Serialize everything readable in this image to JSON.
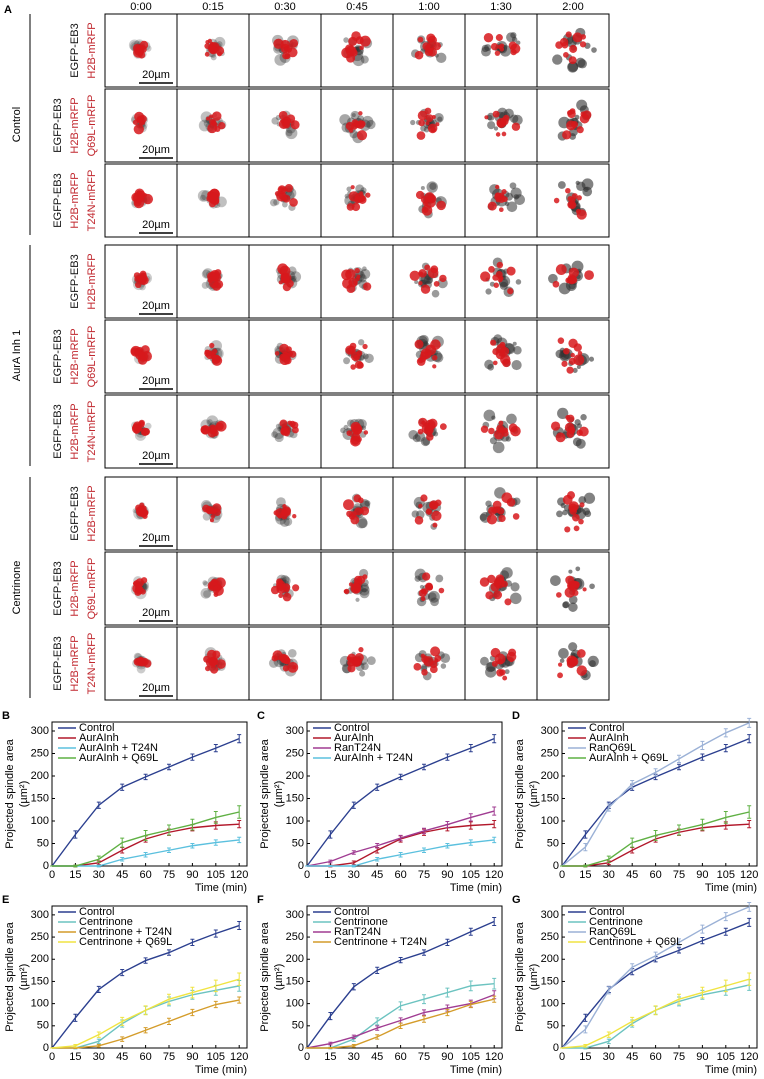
{
  "panel_a": {
    "label": "A",
    "times": [
      "0:00",
      "0:15",
      "0:30",
      "0:45",
      "1:00",
      "1:30",
      "2:00"
    ],
    "scale_bar": "20µm",
    "groups": [
      {
        "name": "Control",
        "rows": [
          [
            "EGFP-EB3",
            "H2B-mRFP"
          ],
          [
            "EGFP-EB3",
            "H2B-mRFP",
            "Q69L-mRFP"
          ],
          [
            "EGFP-EB3",
            "H2B-mRFP",
            "T24N-mRFP"
          ]
        ]
      },
      {
        "name": "AurA Inh 1",
        "rows": [
          [
            "EGFP-EB3",
            "H2B-mRFP"
          ],
          [
            "EGFP-EB3",
            "H2B-mRFP",
            "Q69L-mRFP"
          ],
          [
            "EGFP-EB3",
            "H2B-mRFP",
            "T24N-mRFP"
          ]
        ]
      },
      {
        "name": "Centrinone",
        "rows": [
          [
            "EGFP-EB3",
            "H2B-mRFP"
          ],
          [
            "EGFP-EB3",
            "H2B-mRFP",
            "Q69L-mRFP"
          ],
          [
            "EGFP-EB3",
            "H2B-mRFP",
            "T24N-mRFP"
          ]
        ]
      }
    ]
  },
  "chart_data": [
    {
      "type": "line",
      "panel": "B",
      "xlabel": "Time (min)",
      "ylabel": [
        "Projected spindle area",
        "(µm²)"
      ],
      "x": [
        0,
        15,
        30,
        45,
        60,
        75,
        90,
        105,
        120
      ],
      "xlim": [
        0,
        125
      ],
      "xticks": [
        0,
        15,
        30,
        45,
        60,
        75,
        90,
        105,
        120
      ],
      "ylim": [
        0,
        320
      ],
      "yticks": [
        0,
        50,
        100,
        150,
        200,
        250,
        300
      ],
      "legend": "upper left",
      "series": [
        {
          "name": "Control",
          "color": "#2b3f8f",
          "values": [
            0,
            70,
            135,
            175,
            198,
            220,
            242,
            262,
            283
          ],
          "errors": [
            0,
            8,
            7,
            7,
            6,
            6,
            7,
            8,
            9
          ]
        },
        {
          "name": "AurAInh",
          "color": "#b2182b",
          "values": [
            0,
            0,
            7,
            35,
            60,
            75,
            85,
            90,
            93
          ],
          "errors": [
            0,
            2,
            4,
            6,
            7,
            7,
            7,
            8,
            8
          ]
        },
        {
          "name": "AurAInh + T24N",
          "color": "#5bc0de",
          "values": [
            0,
            0,
            0,
            15,
            25,
            35,
            45,
            52,
            58
          ],
          "errors": [
            0,
            1,
            2,
            4,
            5,
            5,
            5,
            6,
            6
          ]
        },
        {
          "name": "AurAInh + Q69L",
          "color": "#5fb043",
          "values": [
            0,
            0,
            15,
            52,
            68,
            80,
            92,
            108,
            120
          ],
          "errors": [
            0,
            2,
            7,
            10,
            11,
            11,
            12,
            13,
            14
          ]
        }
      ]
    },
    {
      "type": "line",
      "panel": "C",
      "xlabel": "Time (min)",
      "ylabel": [
        "Projected spindle area",
        "(µm²)"
      ],
      "x": [
        0,
        15,
        30,
        45,
        60,
        75,
        90,
        105,
        120
      ],
      "xlim": [
        0,
        125
      ],
      "xticks": [
        0,
        15,
        30,
        45,
        60,
        75,
        90,
        105,
        120
      ],
      "ylim": [
        0,
        320
      ],
      "yticks": [
        0,
        50,
        100,
        150,
        200,
        250,
        300
      ],
      "legend": "upper left",
      "series": [
        {
          "name": "Control",
          "color": "#2b3f8f",
          "values": [
            0,
            70,
            135,
            175,
            198,
            220,
            242,
            262,
            283
          ],
          "errors": [
            0,
            8,
            7,
            7,
            6,
            6,
            7,
            8,
            9
          ]
        },
        {
          "name": "AurAInh",
          "color": "#b2182b",
          "values": [
            0,
            0,
            7,
            35,
            60,
            75,
            85,
            90,
            93
          ],
          "errors": [
            0,
            2,
            4,
            6,
            7,
            7,
            7,
            8,
            8
          ]
        },
        {
          "name": "RanT24N",
          "color": "#a03c92",
          "values": [
            0,
            10,
            30,
            45,
            62,
            78,
            92,
            108,
            122
          ],
          "errors": [
            0,
            3,
            4,
            5,
            6,
            6,
            7,
            8,
            9
          ]
        },
        {
          "name": "AurAInh + T24N",
          "color": "#5bc0de",
          "values": [
            0,
            0,
            0,
            15,
            25,
            35,
            45,
            52,
            58
          ],
          "errors": [
            0,
            1,
            2,
            4,
            5,
            5,
            5,
            6,
            6
          ]
        }
      ]
    },
    {
      "type": "line",
      "panel": "D",
      "xlabel": "Time (min)",
      "ylabel": [
        "Projected spindle area",
        "(µm²)"
      ],
      "x": [
        0,
        15,
        30,
        45,
        60,
        75,
        90,
        105,
        120
      ],
      "xlim": [
        0,
        125
      ],
      "xticks": [
        0,
        15,
        30,
        45,
        60,
        75,
        90,
        105,
        120
      ],
      "ylim": [
        0,
        320
      ],
      "yticks": [
        0,
        50,
        100,
        150,
        200,
        250,
        300
      ],
      "legend": "upper left",
      "series": [
        {
          "name": "Control",
          "color": "#2b3f8f",
          "values": [
            0,
            70,
            135,
            175,
            198,
            220,
            242,
            262,
            283
          ],
          "errors": [
            0,
            8,
            7,
            7,
            6,
            6,
            7,
            8,
            9
          ]
        },
        {
          "name": "AurAInh",
          "color": "#b2182b",
          "values": [
            0,
            0,
            7,
            35,
            60,
            75,
            85,
            90,
            93
          ],
          "errors": [
            0,
            2,
            4,
            6,
            7,
            7,
            7,
            8,
            8
          ]
        },
        {
          "name": "RanQ69L",
          "color": "#9bb1d6",
          "values": [
            0,
            42,
            130,
            182,
            208,
            238,
            268,
            296,
            318
          ],
          "errors": [
            0,
            8,
            8,
            8,
            8,
            8,
            9,
            9,
            10
          ]
        },
        {
          "name": "AurAInh + Q69L",
          "color": "#5fb043",
          "values": [
            0,
            0,
            15,
            52,
            68,
            80,
            92,
            108,
            120
          ],
          "errors": [
            0,
            2,
            7,
            10,
            11,
            11,
            12,
            13,
            14
          ]
        }
      ]
    },
    {
      "type": "line",
      "panel": "E",
      "xlabel": "Time (min)",
      "ylabel": [
        "Projected spindle area",
        "(µm²)"
      ],
      "x": [
        0,
        15,
        30,
        45,
        60,
        75,
        90,
        105,
        120
      ],
      "xlim": [
        0,
        125
      ],
      "xticks": [
        0,
        15,
        30,
        45,
        60,
        75,
        90,
        105,
        120
      ],
      "ylim": [
        0,
        320
      ],
      "yticks": [
        0,
        50,
        100,
        150,
        200,
        250,
        300
      ],
      "legend": "upper left",
      "series": [
        {
          "name": "Control",
          "color": "#2b3f8f",
          "values": [
            0,
            68,
            132,
            170,
            197,
            215,
            238,
            258,
            276
          ],
          "errors": [
            0,
            8,
            7,
            7,
            6,
            6,
            7,
            8,
            9
          ]
        },
        {
          "name": "Centrinone",
          "color": "#6cc3c0",
          "values": [
            0,
            0,
            15,
            55,
            85,
            105,
            120,
            130,
            140
          ],
          "errors": [
            0,
            2,
            5,
            8,
            9,
            10,
            10,
            11,
            12
          ]
        },
        {
          "name": "Centrinone + T24N",
          "color": "#d49c2a",
          "values": [
            0,
            0,
            5,
            20,
            40,
            60,
            80,
            98,
            108
          ],
          "errors": [
            0,
            1,
            3,
            5,
            6,
            7,
            7,
            7,
            7
          ]
        },
        {
          "name": "Centrinone + Q69L",
          "color": "#f0e442",
          "values": [
            0,
            5,
            30,
            60,
            85,
            110,
            125,
            140,
            155
          ],
          "errors": [
            0,
            3,
            6,
            9,
            10,
            11,
            12,
            13,
            14
          ]
        }
      ]
    },
    {
      "type": "line",
      "panel": "F",
      "xlabel": "Time (min)",
      "ylabel": [
        "Projected spindle area",
        "(µm²)"
      ],
      "x": [
        0,
        15,
        30,
        45,
        60,
        75,
        90,
        105,
        120
      ],
      "xlim": [
        0,
        125
      ],
      "xticks": [
        0,
        15,
        30,
        45,
        60,
        75,
        90,
        105,
        120
      ],
      "ylim": [
        0,
        320
      ],
      "yticks": [
        0,
        50,
        100,
        150,
        200,
        250,
        300
      ],
      "legend": "upper left",
      "series": [
        {
          "name": "Control",
          "color": "#2b3f8f",
          "values": [
            0,
            72,
            138,
            175,
            198,
            215,
            238,
            262,
            285
          ],
          "errors": [
            0,
            8,
            7,
            7,
            6,
            6,
            7,
            8,
            9
          ]
        },
        {
          "name": "Centrinone",
          "color": "#6cc3c0",
          "values": [
            0,
            0,
            20,
            60,
            95,
            110,
            125,
            140,
            145
          ],
          "errors": [
            0,
            2,
            5,
            8,
            9,
            10,
            10,
            11,
            12
          ]
        },
        {
          "name": "RanT24N",
          "color": "#a03c92",
          "values": [
            0,
            10,
            25,
            45,
            62,
            80,
            90,
            100,
            120
          ],
          "errors": [
            0,
            3,
            4,
            5,
            6,
            6,
            7,
            8,
            9
          ]
        },
        {
          "name": "Centrinone + T24N",
          "color": "#d49c2a",
          "values": [
            0,
            0,
            5,
            25,
            50,
            65,
            80,
            98,
            110
          ],
          "errors": [
            0,
            1,
            3,
            5,
            6,
            7,
            7,
            7,
            7
          ]
        }
      ]
    },
    {
      "type": "line",
      "panel": "G",
      "xlabel": "Time (min)",
      "ylabel": [
        "Projected spindle area",
        "(µm²)"
      ],
      "x": [
        0,
        15,
        30,
        45,
        60,
        75,
        90,
        105,
        120
      ],
      "xlim": [
        0,
        125
      ],
      "xticks": [
        0,
        15,
        30,
        45,
        60,
        75,
        90,
        105,
        120
      ],
      "ylim": [
        0,
        320
      ],
      "yticks": [
        0,
        50,
        100,
        150,
        200,
        250,
        300
      ],
      "legend": "upper left",
      "series": [
        {
          "name": "Control",
          "color": "#2b3f8f",
          "values": [
            0,
            68,
            132,
            172,
            200,
            220,
            242,
            262,
            283
          ],
          "errors": [
            0,
            8,
            7,
            7,
            6,
            6,
            7,
            8,
            9
          ]
        },
        {
          "name": "Centrinone",
          "color": "#6cc3c0",
          "values": [
            0,
            0,
            15,
            55,
            85,
            105,
            120,
            130,
            142
          ],
          "errors": [
            0,
            2,
            5,
            8,
            9,
            10,
            10,
            11,
            12
          ]
        },
        {
          "name": "RanQ69L",
          "color": "#9bb1d6",
          "values": [
            0,
            42,
            130,
            182,
            208,
            238,
            268,
            296,
            318
          ],
          "errors": [
            0,
            8,
            8,
            8,
            8,
            8,
            9,
            9,
            10
          ]
        },
        {
          "name": "Centrinone + Q69L",
          "color": "#f0e442",
          "values": [
            0,
            5,
            30,
            60,
            85,
            110,
            125,
            140,
            155
          ],
          "errors": [
            0,
            3,
            6,
            9,
            10,
            11,
            12,
            13,
            14
          ]
        }
      ]
    }
  ]
}
